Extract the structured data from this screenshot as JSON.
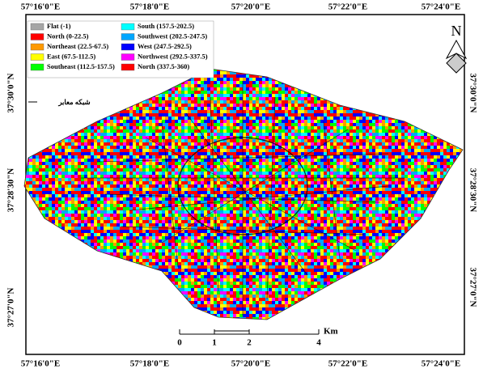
{
  "frame": {
    "top_labels": [
      "57°16'0\"E",
      "57°18'0\"E",
      "57°20'0\"E",
      "57°22'0\"E",
      "57°24'0\"E"
    ],
    "bottom_labels": [
      "57°16'0\"E",
      "57°18'0\"E",
      "57°20'0\"E",
      "57°22'0\"E",
      "57°24'0\"E"
    ],
    "left_labels": [
      "37°30'0\"N",
      "37°28'30\"N",
      "37°27'0\"N"
    ],
    "right_labels": [
      "37°30'0\"N",
      "37°28'30\"N",
      "37°27'0\"N"
    ]
  },
  "legend": {
    "items": [
      {
        "label": "Flat (-1)",
        "color": "#a6a6a6"
      },
      {
        "label": "North (0-22.5)",
        "color": "#ff0000"
      },
      {
        "label": "Northeast (22.5-67.5)",
        "color": "#ff9900"
      },
      {
        "label": "East (67.5-112.5)",
        "color": "#ffff00"
      },
      {
        "label": "Southeast (112.5-157.5)",
        "color": "#00ff00"
      },
      {
        "label": "South (157.5-202.5)",
        "color": "#00ffff"
      },
      {
        "label": "Southwest (202.5-247.5)",
        "color": "#00a6ff"
      },
      {
        "label": "West (247.5-292.5)",
        "color": "#0000ff"
      },
      {
        "label": "Northwest (292.5-337.5)",
        "color": "#ff00ff"
      },
      {
        "label": "North (337.5-360)",
        "color": "#ff0000"
      }
    ]
  },
  "north_arrow": {
    "label": "N"
  },
  "road_label": "شبکه معابر",
  "scale_bar": {
    "ticks": [
      0,
      1,
      2,
      4
    ],
    "unit": "Km"
  }
}
